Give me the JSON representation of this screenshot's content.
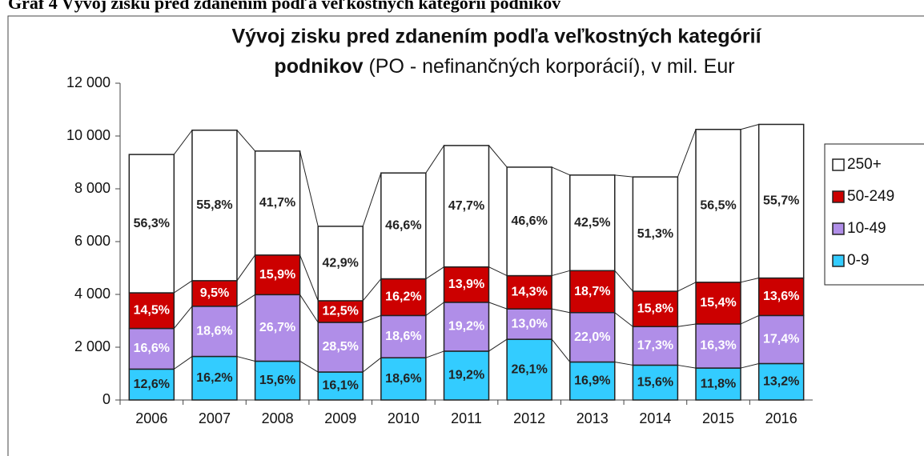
{
  "page_heading": "Graf 4 Vývoj zisku pred zdanením podľa veľkostných kategórií podnikov",
  "chart_data": {
    "type": "stacked_bar",
    "title": [
      "Vývoj zisku pred zdanením podľa veľkostných kategórií",
      "podnikov"
    ],
    "subtitle": "(PO - nefinančných korporácií), v mil. Eur",
    "categories": [
      "2006",
      "2007",
      "2008",
      "2009",
      "2010",
      "2011",
      "2012",
      "2013",
      "2014",
      "2015",
      "2016"
    ],
    "series": [
      {
        "name": "0-9",
        "color": "#33ccff",
        "label_color": "#222222",
        "values": [
          1170,
          1650,
          1470,
          1060,
          1600,
          1850,
          2300,
          1440,
          1320,
          1210,
          1380
        ],
        "share_labels": [
          "12,6%",
          "16,2%",
          "15,6%",
          "16,1%",
          "18,6%",
          "19,2%",
          "26,1%",
          "16,9%",
          "15,6%",
          "11,8%",
          "13,2%"
        ]
      },
      {
        "name": "10-49",
        "color": "#b08ee8",
        "label_color": "#ffffff",
        "values": [
          1540,
          1900,
          2520,
          1880,
          1600,
          1850,
          1150,
          1870,
          1460,
          1670,
          1820
        ],
        "share_labels": [
          "16,6%",
          "18,6%",
          "26,7%",
          "28,5%",
          "18,6%",
          "19,2%",
          "13,0%",
          "22,0%",
          "17,3%",
          "16,3%",
          "17,4%"
        ]
      },
      {
        "name": "50-249",
        "color": "#cc0000",
        "label_color": "#ffffff",
        "values": [
          1350,
          970,
          1500,
          820,
          1390,
          1340,
          1260,
          1590,
          1340,
          1580,
          1420
        ],
        "share_labels": [
          "14,5%",
          "9,5%",
          "15,9%",
          "12,5%",
          "16,2%",
          "13,9%",
          "14,3%",
          "18,7%",
          "15,8%",
          "15,4%",
          "13,6%"
        ]
      },
      {
        "name": "250+",
        "color": "#ffffff",
        "label_color": "#222222",
        "values": [
          5240,
          5700,
          3940,
          2820,
          4010,
          4600,
          4110,
          3620,
          4330,
          5790,
          5820
        ],
        "share_labels": [
          "56,3%",
          "55,8%",
          "41,7%",
          "42,9%",
          "46,6%",
          "47,7%",
          "46,6%",
          "42,5%",
          "51,3%",
          "56,5%",
          "55,7%"
        ]
      }
    ],
    "ylim": [
      0,
      12000
    ],
    "yticks": [
      0,
      {
        "value": 2000,
        "label": "2 000"
      },
      {
        "value": 4000,
        "label": "4 000"
      },
      {
        "value": 6000,
        "label": "6 000"
      },
      {
        "value": 8000,
        "label": "8 000"
      },
      {
        "value": 10000,
        "label": "10 000"
      },
      {
        "value": 12000,
        "label": "12 000"
      }
    ],
    "grid": false,
    "legend": "right"
  }
}
